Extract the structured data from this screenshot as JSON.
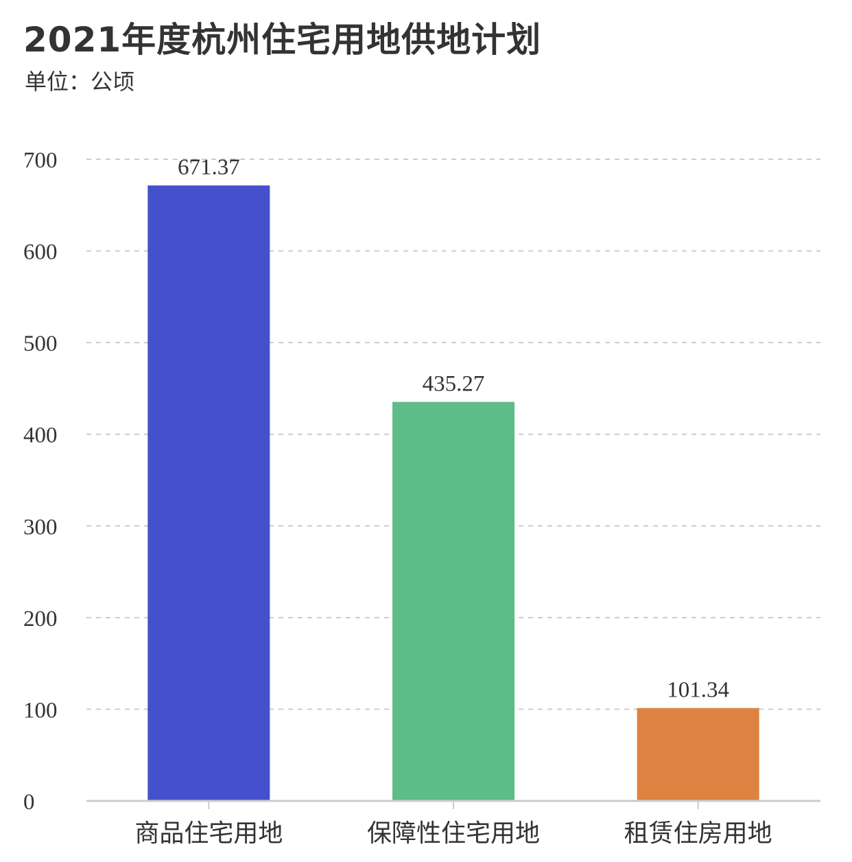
{
  "title": "2021年度杭州住宅用地供地计划",
  "subtitle": "单位：公顷",
  "chart_data": {
    "type": "bar",
    "categories": [
      "商品住宅用地",
      "保障性住宅用地",
      "租赁住房用地"
    ],
    "values": [
      671.37,
      435.27,
      101.34
    ],
    "data_labels": [
      "671.37",
      "435.27",
      "101.34"
    ],
    "colors": [
      "#4450CC",
      "#5EBD86",
      "#DE8241"
    ],
    "ylim": [
      0,
      700
    ],
    "yticks": [
      "0",
      "100",
      "200",
      "300",
      "400",
      "500",
      "600",
      "700"
    ],
    "grid": true,
    "grid_style": "dashed"
  }
}
